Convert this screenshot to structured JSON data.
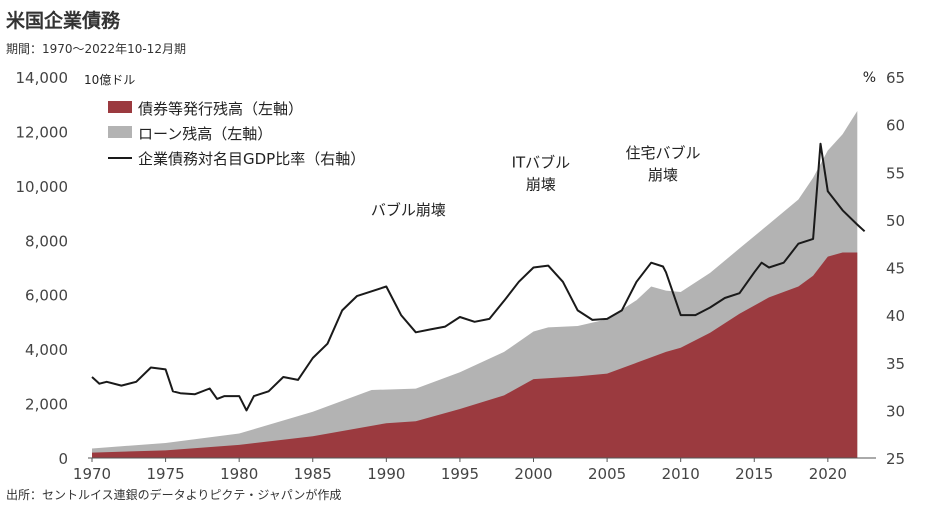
{
  "header": {
    "title": "米国企業債務",
    "subtitle": "期間：1970～2022年10-12月期"
  },
  "footer": {
    "source": "出所：セントルイス連銀のデータよりピクテ・ジャパンが作成"
  },
  "colors": {
    "bonds": "#9b3a3f",
    "loans": "#b3b3b3",
    "ratio": "#1a1a1a"
  },
  "chart_data": {
    "type": "area",
    "left_axis": {
      "unit_label": "10億ドル",
      "ylim": [
        0,
        14000
      ],
      "ticks": [
        "0",
        "2,000",
        "4,000",
        "6,000",
        "8,000",
        "10,000",
        "12,000",
        "14,000"
      ]
    },
    "right_axis": {
      "unit_label": "%",
      "ylim": [
        25,
        65
      ],
      "ticks": [
        "25",
        "30",
        "35",
        "40",
        "45",
        "50",
        "55",
        "60",
        "65"
      ]
    },
    "x_axis": {
      "range": [
        1970,
        2023
      ],
      "ticks": [
        "1970",
        "1975",
        "1980",
        "1985",
        "1990",
        "1995",
        "2000",
        "2005",
        "2010",
        "2015",
        "2020"
      ]
    },
    "legend": {
      "position": "top-left",
      "items": [
        {
          "label": "債券等発行残高（左軸）",
          "kind": "area",
          "key": "bonds"
        },
        {
          "label": "ローン残高（左軸）",
          "kind": "area",
          "key": "loans"
        },
        {
          "label": "企業債務対名目GDP比率（右軸）",
          "kind": "line",
          "key": "ratio"
        }
      ]
    },
    "annotations": [
      {
        "lines": [
          "バブル崩壊"
        ],
        "x": 1991.5,
        "y_right": 50.5
      },
      {
        "lines": [
          "ITバブル",
          "崩壊"
        ],
        "x": 2000.5,
        "y_right": 55.5
      },
      {
        "lines": [
          "住宅バブル",
          "崩壊"
        ],
        "x": 2008.8,
        "y_right": 56.5
      }
    ],
    "series": [
      {
        "name": "債券等発行残高（左軸）",
        "axis": "left",
        "type": "area",
        "points": [
          [
            1970,
            200
          ],
          [
            1975,
            280
          ],
          [
            1980,
            480
          ],
          [
            1985,
            800
          ],
          [
            1990,
            1280
          ],
          [
            1992,
            1350
          ],
          [
            1995,
            1800
          ],
          [
            1998,
            2300
          ],
          [
            2000,
            2900
          ],
          [
            2003,
            3000
          ],
          [
            2005,
            3100
          ],
          [
            2007,
            3500
          ],
          [
            2009,
            3900
          ],
          [
            2010,
            4050
          ],
          [
            2012,
            4600
          ],
          [
            2014,
            5300
          ],
          [
            2016,
            5900
          ],
          [
            2018,
            6300
          ],
          [
            2019,
            6700
          ],
          [
            2020,
            7400
          ],
          [
            2021,
            7550
          ],
          [
            2022,
            7550
          ]
        ]
      },
      {
        "name": "ローン残高（左軸）",
        "axis": "left",
        "type": "area_total",
        "points": [
          [
            1970,
            350
          ],
          [
            1975,
            550
          ],
          [
            1980,
            900
          ],
          [
            1985,
            1700
          ],
          [
            1989,
            2500
          ],
          [
            1992,
            2550
          ],
          [
            1995,
            3150
          ],
          [
            1998,
            3900
          ],
          [
            2000,
            4650
          ],
          [
            2001,
            4800
          ],
          [
            2003,
            4850
          ],
          [
            2005,
            5100
          ],
          [
            2007,
            5800
          ],
          [
            2008,
            6300
          ],
          [
            2009,
            6150
          ],
          [
            2010,
            6100
          ],
          [
            2012,
            6800
          ],
          [
            2014,
            7700
          ],
          [
            2016,
            8600
          ],
          [
            2018,
            9500
          ],
          [
            2019,
            10300
          ],
          [
            2020,
            11300
          ],
          [
            2021,
            11900
          ],
          [
            2022,
            12750
          ]
        ]
      },
      {
        "name": "企業債務対名目GDP比率（右軸）",
        "axis": "right",
        "type": "line",
        "points": [
          [
            1970,
            33.5
          ],
          [
            1970.5,
            32.8
          ],
          [
            1971,
            33
          ],
          [
            1972,
            32.6
          ],
          [
            1973,
            33
          ],
          [
            1974,
            34.5
          ],
          [
            1975,
            34.3
          ],
          [
            1975.5,
            32
          ],
          [
            1976,
            31.8
          ],
          [
            1977,
            31.7
          ],
          [
            1978,
            32.3
          ],
          [
            1978.5,
            31.2
          ],
          [
            1979,
            31.5
          ],
          [
            1980,
            31.5
          ],
          [
            1980.5,
            30
          ],
          [
            1981,
            31.5
          ],
          [
            1982,
            32
          ],
          [
            1983,
            33.5
          ],
          [
            1984,
            33.2
          ],
          [
            1985,
            35.5
          ],
          [
            1986,
            37
          ],
          [
            1987,
            40.5
          ],
          [
            1988,
            42
          ],
          [
            1989,
            42.5
          ],
          [
            1990,
            43
          ],
          [
            1991,
            40
          ],
          [
            1992,
            38.2
          ],
          [
            1993,
            38.5
          ],
          [
            1994,
            38.8
          ],
          [
            1995,
            39.8
          ],
          [
            1996,
            39.3
          ],
          [
            1997,
            39.6
          ],
          [
            1998,
            41.5
          ],
          [
            1999,
            43.5
          ],
          [
            2000,
            45
          ],
          [
            2001,
            45.2
          ],
          [
            2002,
            43.5
          ],
          [
            2003,
            40.5
          ],
          [
            2004,
            39.5
          ],
          [
            2005,
            39.6
          ],
          [
            2006,
            40.5
          ],
          [
            2007,
            43.5
          ],
          [
            2008,
            45.5
          ],
          [
            2008.8,
            45.1
          ],
          [
            2009,
            44.5
          ],
          [
            2010,
            40
          ],
          [
            2011,
            40
          ],
          [
            2012,
            40.8
          ],
          [
            2013,
            41.8
          ],
          [
            2014,
            42.3
          ],
          [
            2015,
            44.5
          ],
          [
            2015.5,
            45.5
          ],
          [
            2016,
            45
          ],
          [
            2017,
            45.5
          ],
          [
            2018,
            47.5
          ],
          [
            2019,
            48
          ],
          [
            2019.5,
            58
          ],
          [
            2020,
            53
          ],
          [
            2021,
            51
          ],
          [
            2022,
            49.5
          ],
          [
            2022.5,
            48.8
          ]
        ]
      }
    ]
  }
}
